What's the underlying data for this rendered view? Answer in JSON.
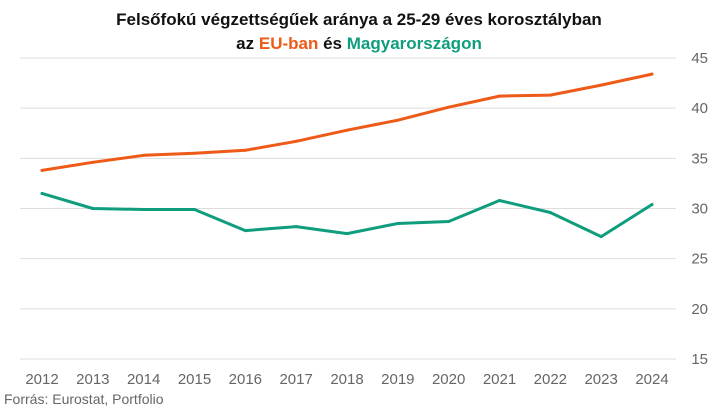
{
  "chart_data": {
    "type": "line",
    "title_line1": "Felsőfokú végzettségűek aránya a 25-29 éves korosztályban",
    "title_line2": {
      "prefix": "az",
      "eu": "EU-ban",
      "middle": "és",
      "hu": "Magyarországon"
    },
    "x": [
      "2012",
      "2013",
      "2014",
      "2015",
      "2016",
      "2017",
      "2018",
      "2019",
      "2020",
      "2021",
      "2022",
      "2023",
      "2024"
    ],
    "series": [
      {
        "key": "eu",
        "color": "#ee5a17",
        "values": [
          33.8,
          34.6,
          35.3,
          35.5,
          35.8,
          36.7,
          37.8,
          38.8,
          40.1,
          41.2,
          41.3,
          42.3,
          43.4
        ]
      },
      {
        "key": "hu",
        "color": "#0f9d7e",
        "values": [
          31.5,
          30.0,
          29.9,
          29.9,
          27.8,
          28.2,
          27.5,
          28.5,
          28.7,
          30.8,
          29.6,
          27.2,
          30.4
        ]
      }
    ],
    "ylim": [
      15,
      45
    ],
    "yticks": [
      15,
      20,
      25,
      30,
      35,
      40,
      45
    ],
    "y_axis_position": "right",
    "grid": true,
    "source": "Forrás: Eurostat, Portfolio"
  }
}
